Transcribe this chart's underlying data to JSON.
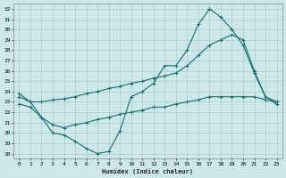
{
  "xlabel": "Humidex (Indice chaleur)",
  "background_color": "#cce8e8",
  "grid_color": "#aacccc",
  "line_color": "#1a6b6b",
  "xlim": [
    -0.5,
    23.5
  ],
  "ylim": [
    17.5,
    32.5
  ],
  "xticks": [
    0,
    1,
    2,
    3,
    4,
    5,
    6,
    7,
    8,
    9,
    10,
    11,
    12,
    13,
    14,
    15,
    16,
    17,
    18,
    19,
    20,
    21,
    22,
    23
  ],
  "yticks": [
    18,
    19,
    20,
    21,
    22,
    23,
    24,
    25,
    26,
    27,
    28,
    29,
    30,
    31,
    32
  ],
  "curve1_x": [
    0,
    1,
    2,
    3,
    4,
    5,
    6,
    7,
    8,
    9,
    10,
    11,
    12,
    13,
    14,
    15,
    16,
    17,
    18,
    19,
    20,
    21,
    22,
    23
  ],
  "curve1_y": [
    23.8,
    23.0,
    21.5,
    20.0,
    19.8,
    19.2,
    18.5,
    18.0,
    18.2,
    20.2,
    23.5,
    24.0,
    24.8,
    26.5,
    26.5,
    28.0,
    30.5,
    32.0,
    31.2,
    30.0,
    28.5,
    25.8,
    23.5,
    23.0
  ],
  "curve2_x": [
    0,
    1,
    2,
    3,
    4,
    5,
    6,
    7,
    8,
    9,
    10,
    11,
    12,
    13,
    14,
    15,
    16,
    17,
    18,
    19,
    20,
    21,
    22,
    23
  ],
  "curve2_y": [
    23.5,
    23.0,
    23.0,
    23.2,
    23.3,
    23.5,
    23.8,
    24.0,
    24.3,
    24.5,
    24.8,
    25.0,
    25.3,
    25.5,
    25.8,
    26.5,
    27.5,
    28.5,
    29.0,
    29.5,
    29.0,
    26.0,
    23.5,
    22.8
  ],
  "curve3_x": [
    0,
    1,
    2,
    3,
    4,
    5,
    6,
    7,
    8,
    9,
    10,
    11,
    12,
    13,
    14,
    15,
    16,
    17,
    18,
    19,
    20,
    21,
    22,
    23
  ],
  "curve3_y": [
    22.8,
    22.5,
    21.5,
    20.8,
    20.5,
    20.8,
    21.0,
    21.3,
    21.5,
    21.8,
    22.0,
    22.2,
    22.5,
    22.5,
    22.8,
    23.0,
    23.2,
    23.5,
    23.5,
    23.5,
    23.5,
    23.5,
    23.2,
    23.0
  ]
}
